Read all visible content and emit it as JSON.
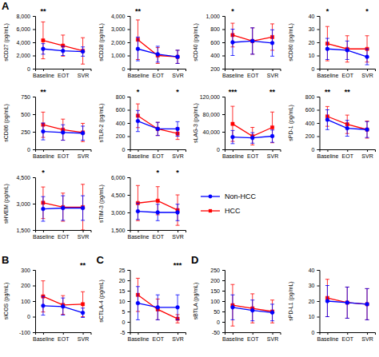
{
  "chart_data": [
    {
      "type": "line",
      "panel_label": "A",
      "y_label": "sCD27 (pg/mL)",
      "categories": [
        "Baseline",
        "EOT",
        "SVR"
      ],
      "ylim": [
        0,
        8000
      ],
      "yticks": [
        0,
        {
          "value": 2000,
          "label": "2,000"
        },
        {
          "value": 4000,
          "label": "4,000"
        },
        {
          "value": 6000,
          "label": "6,000"
        },
        {
          "value": 8000,
          "label": "8,000"
        }
      ],
      "series": [
        {
          "name": "Non-HCC",
          "color": "#0000FF",
          "marker": "circle",
          "values": [
            3000,
            2700,
            2600
          ],
          "errors": [
            800,
            700,
            700
          ]
        },
        {
          "name": "HCC",
          "color": "#FF0000",
          "marker": "square",
          "values": [
            4300,
            3500,
            2700
          ],
          "errors": [
            2800,
            1600,
            2000
          ]
        }
      ],
      "annotations": [
        {
          "x": "Baseline",
          "text": "**"
        }
      ]
    },
    {
      "type": "line",
      "y_label": "sCD28 (pg/mL)",
      "categories": [
        "Baseline",
        "EOT",
        "SVR"
      ],
      "ylim": [
        0,
        4000
      ],
      "yticks": [
        0,
        {
          "value": 1000,
          "label": "1,000"
        },
        {
          "value": 2000,
          "label": "2,000"
        },
        {
          "value": 3000,
          "label": "3,000"
        },
        {
          "value": 4000,
          "label": "4,000"
        }
      ],
      "series": [
        {
          "name": "Non-HCC",
          "color": "#0000FF",
          "marker": "circle",
          "values": [
            1500,
            1100,
            900
          ],
          "errors": [
            900,
            600,
            500
          ]
        },
        {
          "name": "HCC",
          "color": "#FF0000",
          "marker": "square",
          "values": [
            2200,
            1000,
            900
          ],
          "errors": [
            1500,
            600,
            500
          ]
        }
      ],
      "annotations": [
        {
          "x": "Baseline",
          "text": "**"
        }
      ]
    },
    {
      "type": "line",
      "y_label": "sCD40 (pg/mL)",
      "categories": [
        "Baseline",
        "EOT",
        "SVR"
      ],
      "ylim": [
        200,
        1000
      ],
      "yticks": [
        200,
        400,
        600,
        800,
        {
          "value": 1000,
          "label": "1,000"
        }
      ],
      "series": [
        {
          "name": "Non-HCC",
          "color": "#0000FF",
          "marker": "circle",
          "values": [
            600,
            620,
            590
          ],
          "errors": [
            200,
            200,
            200
          ]
        },
        {
          "name": "HCC",
          "color": "#FF0000",
          "marker": "square",
          "values": [
            710,
            620,
            680
          ],
          "errors": [
            180,
            200,
            200
          ]
        }
      ],
      "annotations": [
        {
          "x": "Baseline",
          "text": "*"
        }
      ]
    },
    {
      "type": "line",
      "y_label": "sCD80 (pg/mL)",
      "categories": [
        "Baseline",
        "EOT",
        "SVR"
      ],
      "ylim": [
        0,
        40
      ],
      "yticks": [
        0,
        10,
        20,
        30,
        40
      ],
      "series": [
        {
          "name": "Non-HCC",
          "color": "#0000FF",
          "marker": "circle",
          "values": [
            15,
            14,
            9
          ],
          "errors": [
            8,
            7,
            6
          ]
        },
        {
          "name": "HCC",
          "color": "#FF0000",
          "marker": "square",
          "values": [
            19,
            15,
            15
          ],
          "errors": [
            13,
            10,
            10
          ]
        }
      ],
      "annotations": [
        {
          "x": "Baseline",
          "text": "*"
        },
        {
          "x": "SVR",
          "text": "*"
        }
      ]
    },
    {
      "type": "line",
      "y_label": "sCD86 (pg/mL)",
      "categories": [
        "Baseline",
        "EOT",
        "SVR"
      ],
      "ylim": [
        0,
        750
      ],
      "yticks": [
        0,
        250,
        500,
        750
      ],
      "series": [
        {
          "name": "Non-HCC",
          "color": "#0000FF",
          "marker": "circle",
          "values": [
            255,
            240,
            230
          ],
          "errors": [
            120,
            110,
            100
          ]
        },
        {
          "name": "HCC",
          "color": "#FF0000",
          "marker": "square",
          "values": [
            350,
            280,
            240
          ],
          "errors": [
            180,
            150,
            130
          ]
        }
      ],
      "annotations": [
        {
          "x": "Baseline",
          "text": "**"
        }
      ]
    },
    {
      "type": "line",
      "y_label": "sTLR-2 (pg/mL)",
      "categories": [
        "Baseline",
        "EOT",
        "SVR"
      ],
      "ylim": [
        0,
        800
      ],
      "yticks": [
        0,
        200,
        400,
        600,
        800
      ],
      "series": [
        {
          "name": "Non-HCC",
          "color": "#0000FF",
          "marker": "circle",
          "values": [
            430,
            310,
            310
          ],
          "errors": [
            160,
            100,
            110
          ]
        },
        {
          "name": "HCC",
          "color": "#FF0000",
          "marker": "square",
          "values": [
            510,
            310,
            240
          ],
          "errors": [
            180,
            100,
            90
          ]
        }
      ],
      "annotations": [
        {
          "x": "Baseline",
          "text": "*"
        },
        {
          "x": "SVR",
          "text": "*"
        }
      ]
    },
    {
      "type": "line",
      "y_label": "sLAG-3 (pg/mL)",
      "categories": [
        "Baseline",
        "EOT",
        "SVR"
      ],
      "ylim": [
        0,
        120000
      ],
      "yticks": [
        0,
        {
          "value": 40000,
          "label": "40,000"
        },
        {
          "value": 80000,
          "label": "80,000"
        },
        {
          "value": 120000,
          "label": "120,000"
        }
      ],
      "series": [
        {
          "name": "Non-HCC",
          "color": "#0000FF",
          "marker": "circle",
          "values": [
            28000,
            26000,
            30000
          ],
          "errors": [
            15000,
            12000,
            14000
          ]
        },
        {
          "name": "HCC",
          "color": "#FF0000",
          "marker": "square",
          "values": [
            58000,
            30000,
            50000
          ],
          "errors": [
            40000,
            20000,
            35000
          ]
        }
      ],
      "annotations": [
        {
          "x": "Baseline",
          "text": "***"
        },
        {
          "x": "SVR",
          "text": "**"
        }
      ]
    },
    {
      "type": "line",
      "y_label": "sPD-1 (pg/mL)",
      "categories": [
        "Baseline",
        "EOT",
        "SVR"
      ],
      "ylim": [
        0,
        800
      ],
      "yticks": [
        0,
        200,
        400,
        600,
        800
      ],
      "series": [
        {
          "name": "Non-HCC",
          "color": "#0000FF",
          "marker": "circle",
          "values": [
            450,
            320,
            300
          ],
          "errors": [
            150,
            120,
            120
          ]
        },
        {
          "name": "HCC",
          "color": "#FF0000",
          "marker": "square",
          "values": [
            500,
            380,
            300
          ],
          "errors": [
            150,
            140,
            130
          ]
        }
      ],
      "annotations": [
        {
          "x": "Baseline",
          "text": "**"
        },
        {
          "x": "EOT",
          "text": "**"
        }
      ]
    },
    {
      "type": "line",
      "y_label": "sHVEM (pg/mL)",
      "categories": [
        "Baseline",
        "EOT",
        "SVR"
      ],
      "ylim": [
        1500,
        4500
      ],
      "yticks": [
        {
          "value": 1500,
          "label": "1,500"
        },
        {
          "value": 3000,
          "label": "3,000"
        },
        {
          "value": 4500,
          "label": "4,500"
        }
      ],
      "series": [
        {
          "name": "Non-HCC",
          "color": "#0000FF",
          "marker": "circle",
          "values": [
            2700,
            2750,
            2750
          ],
          "errors": [
            700,
            700,
            700
          ]
        },
        {
          "name": "HCC",
          "color": "#FF0000",
          "marker": "square",
          "values": [
            3050,
            2800,
            2800
          ],
          "errors": [
            900,
            800,
            1300
          ]
        }
      ],
      "annotations": [
        {
          "x": "Baseline",
          "text": "*"
        }
      ]
    },
    {
      "type": "line",
      "y_label": "sTIM-3 (pg/mL)",
      "categories": [
        "Baseline",
        "EOT",
        "SVR"
      ],
      "legend": "right",
      "ylim": [
        1500,
        6000
      ],
      "yticks": [
        {
          "value": 1500,
          "label": "1,500"
        },
        {
          "value": 3000,
          "label": "3,000"
        },
        {
          "value": 4500,
          "label": "4,500"
        },
        {
          "value": 6000,
          "label": "6,000"
        }
      ],
      "series": [
        {
          "name": "Non-HCC",
          "color": "#0000FF",
          "marker": "circle",
          "values": [
            3100,
            3000,
            3000
          ],
          "errors": [
            700,
            700,
            700
          ]
        },
        {
          "name": "HCC",
          "color": "#FF0000",
          "marker": "square",
          "values": [
            3800,
            4000,
            3200
          ],
          "errors": [
            1500,
            1200,
            1300
          ]
        }
      ],
      "annotations": [
        {
          "x": "EOT",
          "text": "*"
        },
        {
          "x": "SVR",
          "text": "*"
        }
      ]
    },
    {
      "type": "line",
      "panel_label": "B",
      "y_label": "sICOS (pg/mL)",
      "categories": [
        "Baseline",
        "EOT",
        "SVR"
      ],
      "ylim": [
        -100,
        300
      ],
      "yticks": [
        -100,
        0,
        100,
        200,
        300
      ],
      "series": [
        {
          "name": "Non-HCC",
          "color": "#0000FF",
          "marker": "circle",
          "values": [
            70,
            65,
            25
          ],
          "errors": [
            60,
            55,
            30
          ]
        },
        {
          "name": "HCC",
          "color": "#FF0000",
          "marker": "square",
          "values": [
            130,
            75,
            80
          ],
          "errors": [
            100,
            60,
            80
          ]
        }
      ],
      "annotations": [
        {
          "x": "SVR",
          "text": "**"
        }
      ]
    },
    {
      "type": "line",
      "panel_label": "C",
      "y_label": "sCTLA-4 (pg/mL)",
      "categories": [
        "Baseline",
        "EOT",
        "SVR"
      ],
      "ylim": [
        -5,
        25
      ],
      "yticks": [
        -5,
        0,
        5,
        10,
        15,
        20,
        25
      ],
      "series": [
        {
          "name": "Non-HCC",
          "color": "#0000FF",
          "marker": "circle",
          "values": [
            9,
            7,
            7
          ],
          "errors": [
            8,
            6,
            6
          ]
        },
        {
          "name": "HCC",
          "color": "#FF0000",
          "marker": "square",
          "values": [
            13,
            6,
            1.5
          ],
          "errors": [
            8,
            5,
            2
          ]
        }
      ],
      "annotations": [
        {
          "x": "SVR",
          "text": "***"
        }
      ]
    },
    {
      "type": "line",
      "panel_label": "D",
      "y_label": "sBTLA (pg/mL)",
      "categories": [
        "Baseline",
        "EOT",
        "SVR"
      ],
      "ylim": [
        -50,
        250
      ],
      "yticks": [
        -50,
        0,
        50,
        100,
        150,
        200,
        250
      ],
      "series": [
        {
          "name": "Non-HCC",
          "color": "#0000FF",
          "marker": "circle",
          "values": [
            70,
            55,
            45
          ],
          "errors": [
            60,
            50,
            40
          ]
        },
        {
          "name": "HCC",
          "color": "#FF0000",
          "marker": "square",
          "values": [
            80,
            65,
            50
          ],
          "errors": [
            100,
            70,
            55
          ]
        }
      ]
    },
    {
      "type": "line",
      "y_label": "sPD-L1 (pg/mL)",
      "categories": [
        "Baseline",
        "EOT",
        "SVR"
      ],
      "ylim": [
        0,
        40
      ],
      "yticks": [
        0,
        10,
        20,
        30,
        40
      ],
      "series": [
        {
          "name": "Non-HCC",
          "color": "#0000FF",
          "marker": "circle",
          "values": [
            20,
            19,
            18
          ],
          "errors": [
            10,
            10,
            10
          ]
        },
        {
          "name": "HCC",
          "color": "#FF0000",
          "marker": "square",
          "values": [
            22,
            19,
            18
          ],
          "errors": [
            12,
            10,
            10
          ]
        }
      ]
    }
  ]
}
